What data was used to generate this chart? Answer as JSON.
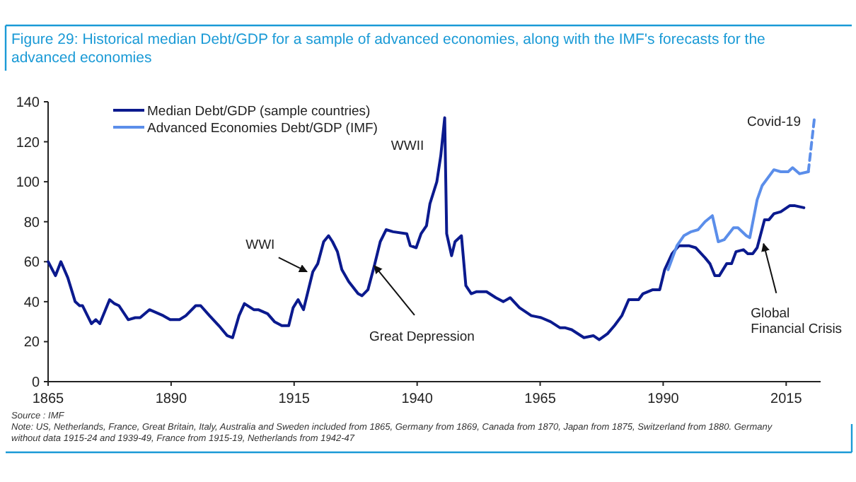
{
  "chart_data": {
    "type": "line",
    "title": "Figure 29: Historical median Debt/GDP for a sample of advanced economies, along with the IMF's forecasts for the advanced economies",
    "xlim": [
      1865,
      2022
    ],
    "xticks": [
      1865,
      1890,
      1915,
      1940,
      1965,
      1990,
      2015
    ],
    "ylim": [
      0,
      140
    ],
    "yticks": [
      0,
      20,
      40,
      60,
      80,
      100,
      120,
      140
    ],
    "grid": false,
    "legend": "top left",
    "marker": "none",
    "series": [
      {
        "name": "Median Debt/GDP (sample countries)",
        "color": "#0b1a8e",
        "line_style": "solid",
        "x": [
          1865,
          1866.5,
          1867.6,
          1869,
          1870.5,
          1871.4,
          1872,
          1873.8,
          1874.7,
          1875.5,
          1877.5,
          1878.5,
          1879.4,
          1881.3,
          1882.7,
          1883.7,
          1885.6,
          1887.5,
          1888.4,
          1889.8,
          1891.7,
          1893,
          1895,
          1896,
          1897.8,
          1899.7,
          1901.4,
          1902.5,
          1903.8,
          1904.9,
          1906.8,
          1907.7,
          1909.6,
          1911,
          1912.5,
          1913.9,
          1914.8,
          1915.8,
          1916.9,
          1918.1,
          1918.8,
          1919.8,
          1921,
          1922,
          1922.8,
          1923.8,
          1924.7,
          1926.1,
          1928,
          1928.8,
          1930,
          1931.3,
          1932.5,
          1933.7,
          1935.1,
          1937.9,
          1938.6,
          1939.8,
          1940.8,
          1941.9,
          1942.6,
          1944,
          1944.8,
          1945.6,
          1946,
          1947,
          1947.7,
          1949,
          1949.9,
          1951,
          1952.1,
          1954.1,
          1956,
          1957.5,
          1958.9,
          1960.8,
          1963.2,
          1965.2,
          1967.1,
          1969,
          1970,
          1971.4,
          1973.9,
          1975.8,
          1977,
          1978.7,
          1980.1,
          1981.6,
          1983,
          1985,
          1985.9,
          1987.9,
          1989.3,
          1990.3,
          1991.8,
          1993.2,
          1995.2,
          1996.6,
          1998.5,
          1999.5,
          2000.5,
          2001.4,
          2002.9,
          2003.9,
          2004.8,
          2006.3,
          2007.2,
          2008.2,
          2009.1,
          2010.6,
          2011.5,
          2012.5,
          2013.9,
          2015.7,
          2016.8,
          2018.6
        ],
        "values": [
          60,
          53,
          60,
          52,
          40,
          38,
          38,
          29,
          31,
          29,
          41,
          39,
          38,
          31,
          32,
          32,
          36,
          34,
          33,
          31,
          31,
          33,
          38,
          38,
          33,
          28,
          23,
          22,
          33,
          39,
          36,
          36,
          34,
          30,
          28,
          28,
          37,
          41,
          36,
          48,
          55,
          59,
          70,
          73,
          70,
          65,
          56,
          50,
          44,
          43,
          46,
          58,
          70,
          76,
          75,
          74,
          68,
          67,
          74,
          78,
          89,
          100,
          113,
          132,
          74,
          63,
          70,
          73,
          48,
          44,
          45,
          45,
          42,
          40,
          42,
          37,
          33,
          32,
          30,
          27,
          27,
          26,
          22,
          23,
          21,
          24,
          28,
          33,
          41,
          41,
          44,
          46,
          46,
          56,
          64,
          68,
          68,
          67,
          62,
          59,
          53,
          53,
          59,
          59,
          65,
          66,
          64,
          64,
          67,
          81,
          81,
          84,
          85,
          88,
          88,
          87
        ]
      },
      {
        "name": "Advanced Economies Debt/GDP (IMF)",
        "color": "#5b8eea",
        "line_style": "solid",
        "x": [
          1991,
          1992.8,
          1994.2,
          1995.7,
          1997.1,
          1998.5,
          2000,
          2001.2,
          2002.4,
          2004.3,
          2005.2,
          2006.9,
          2007.6,
          2009.1,
          2010.1,
          2012.5,
          2013.9,
          2015.4,
          2016.3,
          2017.7,
          2019.5
        ],
        "values": [
          56,
          68,
          73,
          75,
          76,
          80,
          83,
          70,
          71,
          77,
          77,
          73,
          72,
          91,
          98,
          106,
          105,
          105,
          107,
          104,
          105
        ]
      },
      {
        "color": "#5b8eea",
        "line_style": "dashed",
        "x": [
          2019.5,
          2020.7,
          2021.4
        ],
        "values": [
          105,
          131,
          132
        ]
      }
    ],
    "annotations": [
      {
        "text": "WWI",
        "x": 1917.6,
        "y": 55
      },
      {
        "text": "Great Depression",
        "x": 1931.3,
        "y": 58
      },
      "WWII",
      "Covid-19",
      {
        "text": "Global\nFinancial Crisis",
        "x": 2010.4,
        "y": 69
      },
      "Source : IMF",
      "Note: US, Netherlands, France, Great Britain, Italy, Australia and Sweden included from 1865, Germany from 1869, Canada from 1870, Japan from 1875, Switzerland from 1880. Germany without data 1915-24 and 1939-49, France from 1915-19, Netherlands from 1942-47"
    ]
  }
}
